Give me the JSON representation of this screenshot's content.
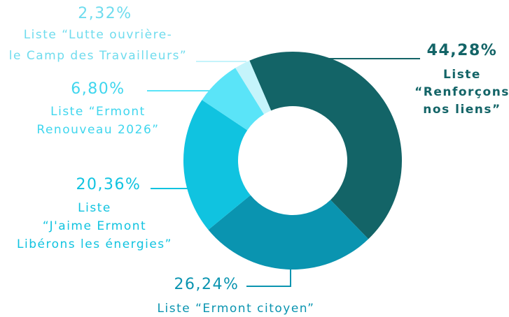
{
  "chart_data": {
    "type": "donut",
    "categories": [
      [
        "Liste",
        "“Renforçons",
        "nos liens”"
      ],
      [
        "Liste “Ermont citoyen”"
      ],
      [
        "Liste",
        "“J'aime Ermont",
        "Libérons les énergies”"
      ],
      [
        "Liste “Ermont",
        "Renouveau 2026”"
      ],
      [
        "Liste “Lutte ouvrière-",
        "le Camp des Travailleurs”"
      ]
    ],
    "values": [
      44.28,
      26.24,
      20.36,
      6.8,
      2.32
    ],
    "value_labels": [
      "44,28%",
      "26,24%",
      "20,36%",
      "6,80%",
      "2,32%"
    ],
    "colors": [
      "#136467",
      "#0a94b0",
      "#10c3e0",
      "#5ae4f8",
      "#c5f4fb"
    ]
  }
}
